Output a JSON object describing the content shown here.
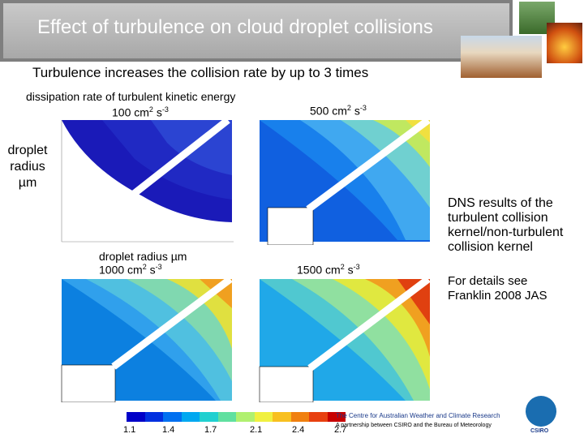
{
  "slide": {
    "title": "Effect of turbulence on cloud droplet collisions",
    "subtitle": "Turbulence increases the collision rate by up to 3 times",
    "dissipation_label": "dissipation rate of turbulent kinetic energy",
    "panel_labels": {
      "p100": "100 cm",
      "p500": "500 cm",
      "p1000": "1000 cm",
      "p1500": "1500 cm",
      "unit_exp1": "2",
      "unit_s": " s",
      "unit_exp2": "-3"
    },
    "y_axis_label": [
      "droplet",
      "radius",
      "µm"
    ],
    "x_axis_label": "droplet radius µm",
    "dns_note": [
      "DNS results of the",
      "turbulent collision",
      "kernel/non-turbulent",
      "collision kernel"
    ],
    "details_note": [
      "For details see",
      "Franklin 2008 JAS"
    ],
    "centre_name": "The Centre for Australian Weather and Climate Research",
    "centre_partner": "A partnership between CSIRO and the Bureau of Meteorology",
    "logo_text": "CSIRO"
  },
  "colorbar": {
    "ticks": [
      "1.1",
      "1.4",
      "1.7",
      "2.1",
      "2.4",
      "2.7"
    ],
    "colors": [
      "#0000c8",
      "#0030e0",
      "#0070f0",
      "#00a8f0",
      "#20d0d0",
      "#60e0a0",
      "#b0f070",
      "#f0f040",
      "#f8c020",
      "#f08010",
      "#e84010",
      "#c80000"
    ]
  },
  "photos": [
    {
      "name": "forest-photo",
      "color": "#4a7a3a"
    },
    {
      "name": "fire-photo",
      "color": "#c8501a"
    },
    {
      "name": "field-photo",
      "color": "#b08060"
    }
  ]
}
